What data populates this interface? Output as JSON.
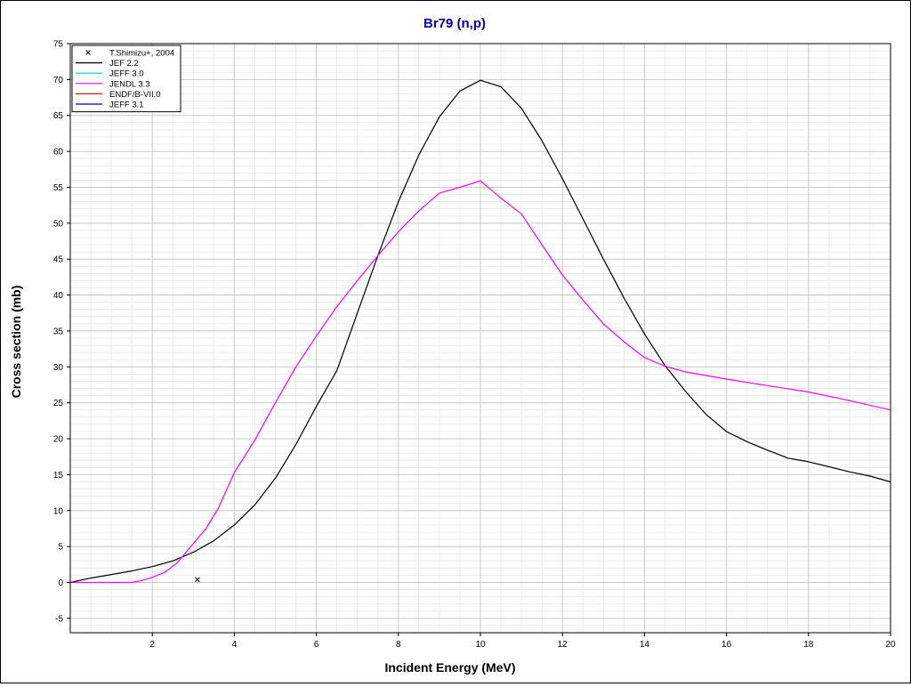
{
  "chart_data": {
    "type": "line",
    "title": "Br79 (n,p)",
    "xlabel": "Incident Energy (MeV)",
    "ylabel": "Cross section (mb)",
    "xlim": [
      0,
      20
    ],
    "ylim": [
      -7,
      75
    ],
    "x_ticks": [
      2,
      4,
      6,
      8,
      10,
      12,
      14,
      16,
      18,
      20
    ],
    "y_ticks": [
      -5,
      0,
      5,
      10,
      15,
      20,
      25,
      30,
      35,
      40,
      45,
      50,
      55,
      60,
      65,
      70,
      75
    ],
    "grid": true,
    "legend_position": "top-left",
    "colors": {
      "title": "#0000aa",
      "grid_major": "#c8c8c8",
      "grid_minor": "#ececec"
    },
    "series": [
      {
        "name": "T.Shimizu+, 2004",
        "kind": "scatter",
        "marker": "x",
        "color": "#000000",
        "x": [
          3.1
        ],
        "y": [
          0.4
        ]
      },
      {
        "name": "JEF 2.2",
        "kind": "line",
        "color": "#000000",
        "x": [
          0,
          0.5,
          1,
          1.5,
          2,
          2.5,
          3,
          3.5,
          4,
          4.5,
          5,
          5.5,
          6,
          6.5,
          7,
          7.5,
          8,
          8.5,
          9,
          9.5,
          10,
          10.5,
          11,
          11.5,
          12,
          12.5,
          13,
          13.5,
          14,
          14.5,
          15,
          15.5,
          16,
          16.5,
          17,
          17.5,
          18,
          18.5,
          19,
          19.5,
          20
        ],
        "y": [
          0,
          0.6,
          1.1,
          1.6,
          2.2,
          3.0,
          4.2,
          5.8,
          8.0,
          10.8,
          14.5,
          19.2,
          24.5,
          29.5,
          37.5,
          45.5,
          53.0,
          59.5,
          64.8,
          68.4,
          69.9,
          69.0,
          66.0,
          61.5,
          56.2,
          50.6,
          45.0,
          39.6,
          34.6,
          30.2,
          26.6,
          23.4,
          21.0,
          19.6,
          18.4,
          17.3,
          16.8,
          16.1,
          15.4,
          14.8,
          14.0
        ]
      },
      {
        "name": "JEFF 3.0",
        "kind": "line",
        "color": "#00c8e6",
        "x": [],
        "y": []
      },
      {
        "name": "JENDL 3.3",
        "kind": "line",
        "color": "#ff00ff",
        "x": [
          0,
          0.5,
          1,
          1.5,
          1.7,
          2,
          2.3,
          2.6,
          3,
          3.3,
          3.6,
          4,
          4.5,
          5,
          5.5,
          6,
          6.5,
          7,
          7.5,
          8,
          8.5,
          9,
          9.5,
          10,
          10.5,
          11,
          11.5,
          12,
          12.5,
          13,
          13.5,
          14,
          14.5,
          15,
          16,
          17,
          18,
          19,
          20
        ],
        "y": [
          0,
          0,
          0,
          0,
          0.2,
          0.7,
          1.4,
          2.7,
          5.4,
          7.4,
          10.2,
          15.3,
          19.8,
          25.0,
          30.0,
          34.3,
          38.4,
          42.0,
          45.5,
          48.8,
          51.7,
          54.2,
          55.0,
          55.9,
          53.5,
          51.3,
          47.0,
          42.8,
          39.3,
          36.0,
          33.5,
          31.3,
          30.1,
          29.3,
          28.3,
          27.4,
          26.5,
          25.3,
          24.0
        ]
      },
      {
        "name": "ENDF/B-VII.0",
        "kind": "line",
        "color": "#cc2200",
        "x": [],
        "y": []
      },
      {
        "name": "JEFF 3.1",
        "kind": "line",
        "color": "#0000aa",
        "x": [],
        "y": []
      }
    ]
  }
}
